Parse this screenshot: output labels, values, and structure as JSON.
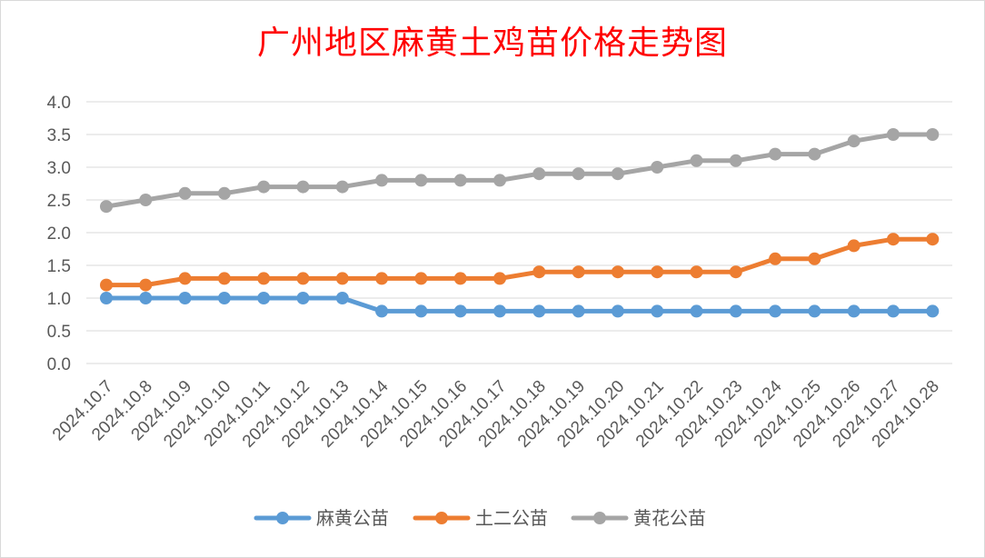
{
  "chart_data": {
    "type": "line",
    "title": "广州地区麻黄土鸡苗价格走势图",
    "title_color": "#ff0000",
    "xlabel": "",
    "ylabel": "",
    "ylim": [
      0,
      4
    ],
    "y_ticks": [
      "0.0",
      "0.5",
      "1.0",
      "1.5",
      "2.0",
      "2.5",
      "3.0",
      "3.5",
      "4.0"
    ],
    "grid": true,
    "legend_position": "bottom",
    "categories": [
      "2024.10.7",
      "2024.10.8",
      "2024.10.9",
      "2024.10.10",
      "2024.10.11",
      "2024.10.12",
      "2024.10.13",
      "2024.10.14",
      "2024.10.15",
      "2024.10.16",
      "2024.10.17",
      "2024.10.18",
      "2024.10.19",
      "2024.10.20",
      "2024.10.21",
      "2024.10.22",
      "2024.10.23",
      "2024.10.24",
      "2024.10.25",
      "2024.10.26",
      "2024.10.27",
      "2024.10.28"
    ],
    "series": [
      {
        "name": "麻黄公苗",
        "color": "#5b9bd5",
        "values": [
          1.0,
          1.0,
          1.0,
          1.0,
          1.0,
          1.0,
          1.0,
          0.8,
          0.8,
          0.8,
          0.8,
          0.8,
          0.8,
          0.8,
          0.8,
          0.8,
          0.8,
          0.8,
          0.8,
          0.8,
          0.8,
          0.8
        ]
      },
      {
        "name": "土二公苗",
        "color": "#ed7d31",
        "values": [
          1.2,
          1.2,
          1.3,
          1.3,
          1.3,
          1.3,
          1.3,
          1.3,
          1.3,
          1.3,
          1.3,
          1.4,
          1.4,
          1.4,
          1.4,
          1.4,
          1.4,
          1.6,
          1.6,
          1.8,
          1.9,
          1.9
        ]
      },
      {
        "name": "黄花公苗",
        "color": "#a5a5a5",
        "values": [
          2.4,
          2.5,
          2.6,
          2.6,
          2.7,
          2.7,
          2.7,
          2.8,
          2.8,
          2.8,
          2.8,
          2.9,
          2.9,
          2.9,
          3.0,
          3.1,
          3.1,
          3.2,
          3.2,
          3.4,
          3.5,
          3.5
        ]
      }
    ]
  }
}
